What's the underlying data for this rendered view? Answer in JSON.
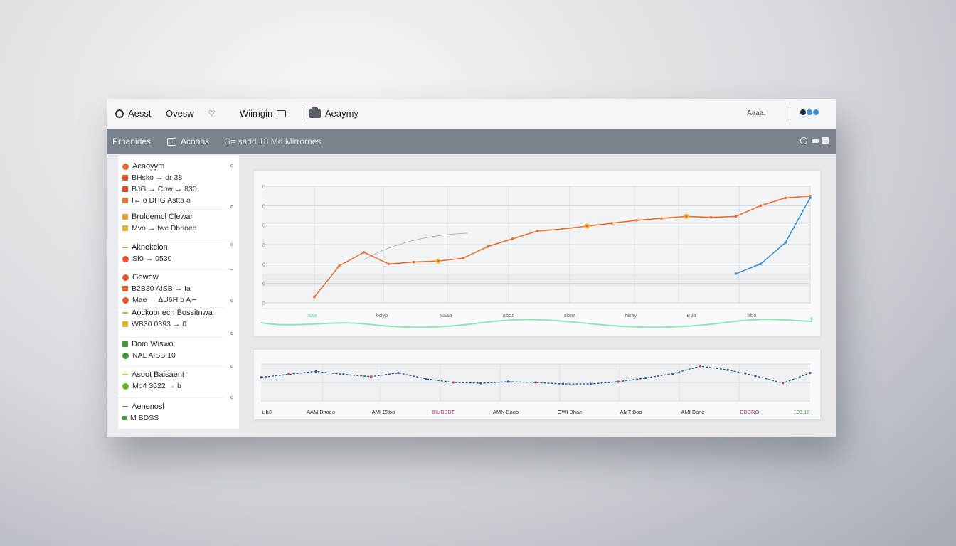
{
  "topbar": {
    "app_title": "Aesst",
    "tab_overview": "Ovesw",
    "tab_warnings": "Wiimgin",
    "tab_academy": "Aeaymy",
    "status_text": "Aaaa.",
    "icons": [
      "menu-icon",
      "chevron-down-icon",
      "message-icon",
      "car-icon",
      "toggle-icon"
    ]
  },
  "subbar": {
    "item_1": "Prnanides",
    "item_2": "Acoobs",
    "item_3": "G= sadd 18 Mo Mirrornes"
  },
  "sidebar": {
    "groups": [
      {
        "title": "Acaoyym",
        "lines": [
          "BHsko → dr 38",
          "BJG → Cbw → 830",
          "I↔lo DHG Astta o"
        ]
      },
      {
        "title": "Bruldemcl Clewar",
        "lines": [
          "Mvo → twc Dbrioed"
        ]
      },
      {
        "title": "Aknekcion",
        "lines": [
          "Sf0 → 0530"
        ]
      },
      {
        "title": "Gewow",
        "lines": [
          "B2B30 AISB → Ia",
          "Mae → ∆U6H b A∽"
        ]
      },
      {
        "title": "Aockoonecn Bossitnwa",
        "lines": [
          "WB30 0393 → 0"
        ]
      },
      {
        "title": "Dom Wiswo.",
        "lines": [
          "NAL AISB 10"
        ]
      },
      {
        "title": "Asoot Baisaent",
        "lines": [
          "Mo4 3622 → b"
        ]
      },
      {
        "title": "Aenenosl",
        "lines": [
          "M BDSS"
        ]
      }
    ]
  },
  "chart_data": [
    {
      "type": "line",
      "x": [
        0,
        1,
        2,
        3,
        4,
        5,
        6,
        7,
        8,
        9,
        10,
        11,
        12,
        13,
        14,
        15,
        16,
        17,
        18,
        19,
        20
      ],
      "series": [
        {
          "values": [
            0.3,
            1.9,
            2.6,
            2.0,
            2.1,
            2.15,
            2.3,
            2.9,
            3.3,
            3.7,
            3.8,
            3.95,
            4.1,
            4.25,
            4.35,
            4.45,
            4.4,
            4.45,
            5.0,
            5.4,
            5.5
          ],
          "color": "#e8702f"
        },
        {
          "values": [
            null,
            null,
            null,
            null,
            null,
            null,
            null,
            null,
            null,
            null,
            null,
            null,
            null,
            null,
            null,
            null,
            null,
            1.5,
            2.0,
            3.1,
            5.4
          ],
          "color": "#3a93d3"
        }
      ],
      "y_ticks": [
        "0",
        "0",
        "0",
        "0",
        "0",
        "0",
        "0"
      ],
      "x_labels": [
        "aaa",
        "bdyp",
        "aaaa",
        "abda",
        "abaa",
        "hbay",
        "Bba",
        "aba"
      ],
      "grid": true
    },
    {
      "type": "line",
      "x": [
        0,
        1,
        2,
        3,
        4,
        5,
        6,
        7,
        8,
        9,
        10,
        11,
        12,
        13,
        14,
        15,
        16,
        17,
        18,
        19,
        20
      ],
      "series": [
        {
          "values": [
            3.2,
            3.6,
            4.0,
            3.6,
            3.3,
            3.8,
            3.0,
            2.5,
            2.4,
            2.6,
            2.5,
            2.3,
            2.3,
            2.6,
            3.1,
            3.7,
            4.7,
            4.2,
            3.4,
            2.4,
            3.8
          ],
          "color": "#2f5f8f"
        }
      ],
      "x_labels": [
        "Ub3",
        "AAM Bhaeo",
        "AMI Bltbo",
        "BIUBEBT",
        "AMN Baoo",
        "OWI Bhae",
        "AMT Boo",
        "AMI Bbne",
        "EBCRO",
        "103.10"
      ],
      "label_colors": [
        "#333",
        "#333",
        "#333",
        "#b0336b",
        "#333",
        "#333",
        "#333",
        "#333",
        "#b0336b",
        "#3c9a3c"
      ],
      "grid": true
    }
  ],
  "colors": {
    "accent_orange": "#e8702f",
    "accent_blue": "#3a93d3",
    "accent_green": "#5fd39a",
    "header_gray": "#7c838d"
  }
}
